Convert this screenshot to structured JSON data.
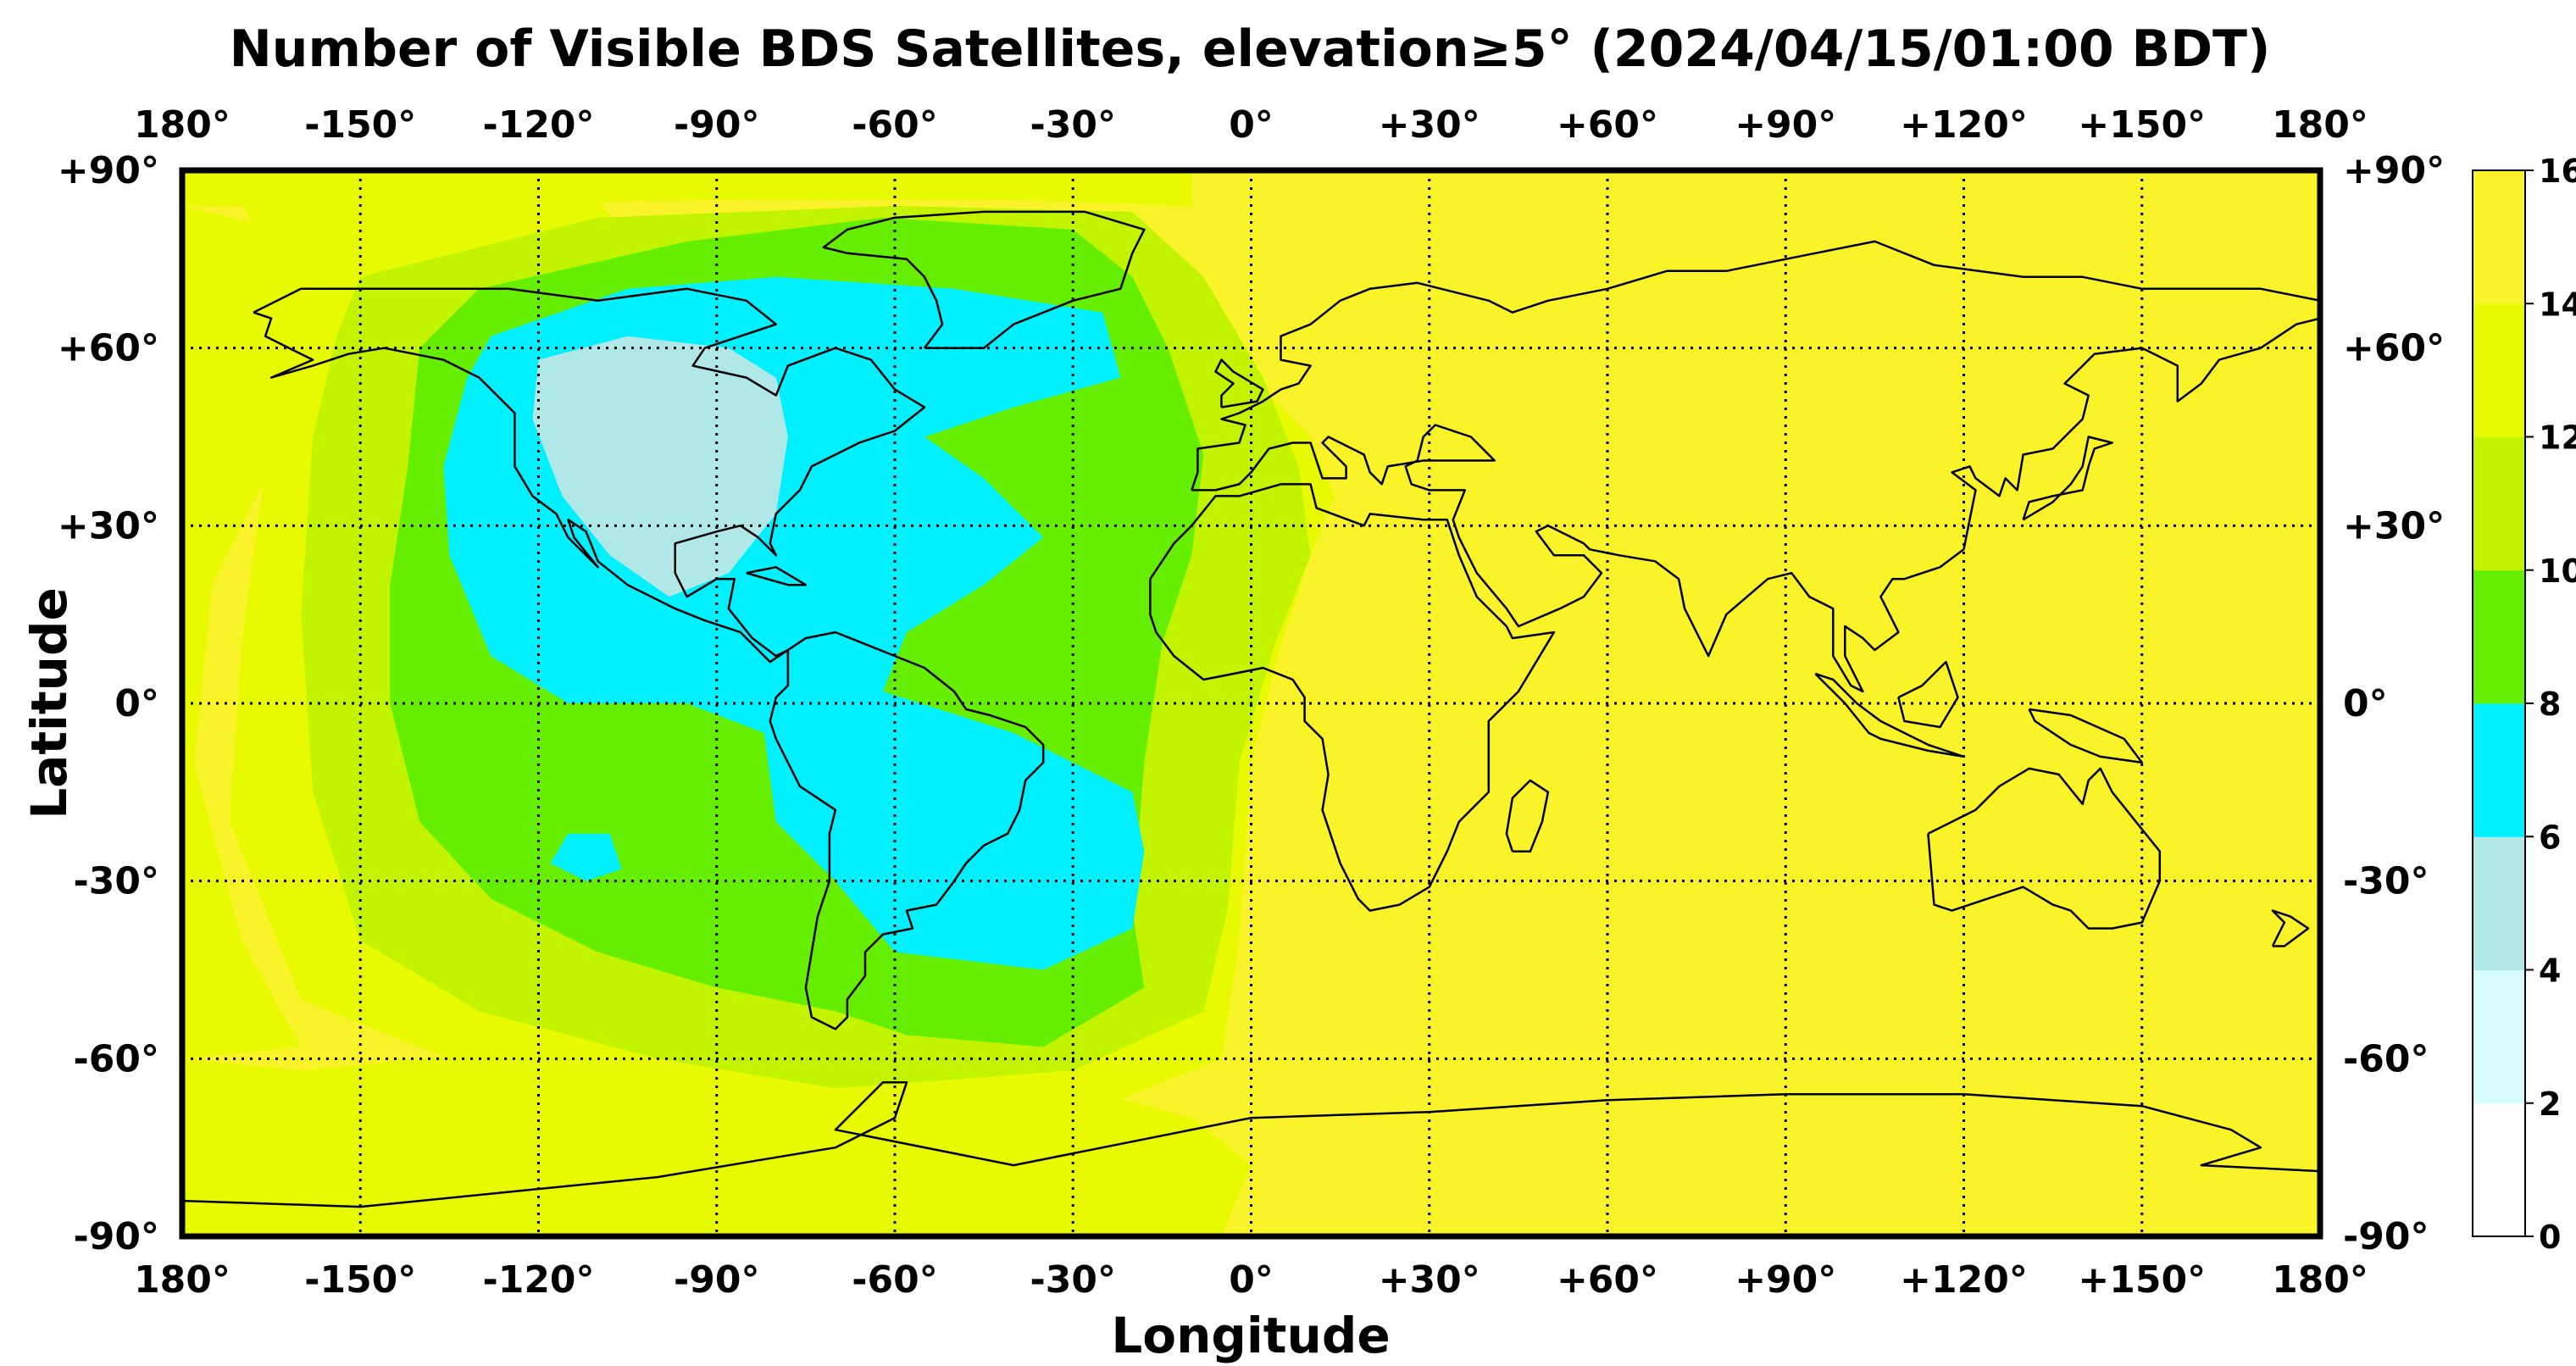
{
  "map": {
    "title": "Number of Visible BDS Satellites, elevation≥5° (2024/04/15/01:00 BDT)",
    "xlabel": "Longitude",
    "ylabel": "Latitude",
    "lon_ticks": [
      "180°",
      "-150°",
      "-120°",
      "-90°",
      "-60°",
      "-30°",
      "0°",
      "+30°",
      "+60°",
      "+90°",
      "+120°",
      "+150°",
      "180°"
    ],
    "lat_ticks": [
      "+90°",
      "+60°",
      "+30°",
      "0°",
      "-30°",
      "-60°",
      "-90°"
    ],
    "lon_range": [
      -180,
      180
    ],
    "lat_range": [
      -90,
      90
    ],
    "grid": "dotted, every 30°",
    "colorbar": {
      "ticks": [
        "0",
        "2",
        "4",
        "6",
        "8",
        "10",
        "12",
        "14",
        "16"
      ],
      "bins": [
        {
          "min": 0,
          "max": 2,
          "color": "#ffffff"
        },
        {
          "min": 2,
          "max": 4,
          "color": "#d6fcfc"
        },
        {
          "min": 4,
          "max": 6,
          "color": "#b0e8e8"
        },
        {
          "min": 6,
          "max": 8,
          "color": "#00f0ff"
        },
        {
          "min": 8,
          "max": 10,
          "color": "#66ee00"
        },
        {
          "min": 10,
          "max": 12,
          "color": "#c2f400"
        },
        {
          "min": 12,
          "max": 14,
          "color": "#e8fa00"
        },
        {
          "min": 14,
          "max": 16,
          "color": "#fbf32a"
        }
      ]
    },
    "regions": [
      {
        "level": 15,
        "note": "Eastern hemisphere, Africa, Europe, Asia, Australia, Indian Ocean"
      },
      {
        "level": 13,
        "note": "Polar bands and central Pacific"
      },
      {
        "level": 11,
        "note": "Band around Atlantic / East Pacific"
      },
      {
        "level": 9,
        "note": "Atlantic and eastern Pacific"
      },
      {
        "level": 7,
        "note": "North America, Central America, South America, South Atlantic"
      },
      {
        "level": 5,
        "note": "Central North America"
      }
    ]
  }
}
